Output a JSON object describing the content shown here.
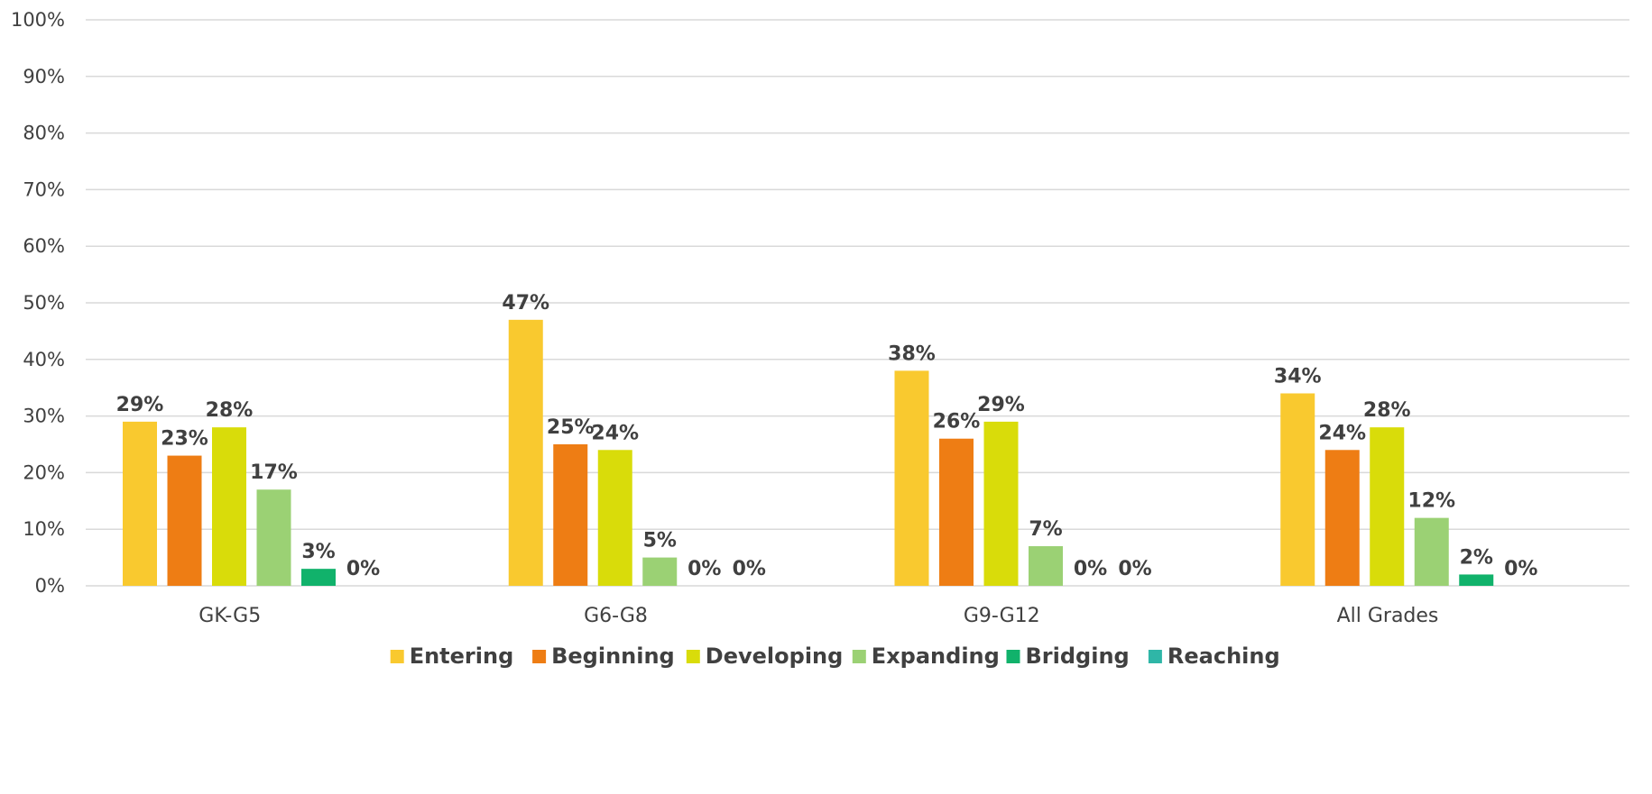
{
  "chart_data": {
    "type": "bar",
    "categories": [
      "GK-G5",
      "G6-G8",
      "G9-G12",
      "All Grades"
    ],
    "series": [
      {
        "name": "Entering",
        "color": "#F9C92F",
        "values": [
          29,
          47,
          38,
          34
        ],
        "labels": [
          "29%",
          "47%",
          "38%",
          "34%"
        ]
      },
      {
        "name": "Beginning",
        "color": "#EE7D14",
        "values": [
          23,
          25,
          26,
          24
        ],
        "labels": [
          "23%",
          "25%",
          "26%",
          "24%"
        ]
      },
      {
        "name": "Developing",
        "color": "#D9DC0A",
        "values": [
          28,
          24,
          29,
          28
        ],
        "labels": [
          "28%",
          "24%",
          "29%",
          "28%"
        ]
      },
      {
        "name": "Expanding",
        "color": "#9BD174",
        "values": [
          17,
          5,
          7,
          12
        ],
        "labels": [
          "17%",
          "5%",
          "7%",
          "12%"
        ]
      },
      {
        "name": "Bridging",
        "color": "#11B26B",
        "values": [
          3,
          0,
          0,
          2
        ],
        "labels": [
          "3%",
          "0%",
          "0%",
          "2%"
        ]
      },
      {
        "name": "Reaching",
        "color": "#2FB6A7",
        "values": [
          0,
          0,
          0,
          0
        ],
        "labels": [
          "0%",
          "0%",
          "0%",
          "0%"
        ]
      }
    ],
    "yticks": [
      "0%",
      "10%",
      "20%",
      "30%",
      "40%",
      "50%",
      "60%",
      "70%",
      "80%",
      "90%",
      "100%"
    ],
    "ylim": [
      0,
      100
    ],
    "grid": true,
    "legend": "bottom",
    "gridColor": "#D9D9D9",
    "textColor": "#404040"
  }
}
